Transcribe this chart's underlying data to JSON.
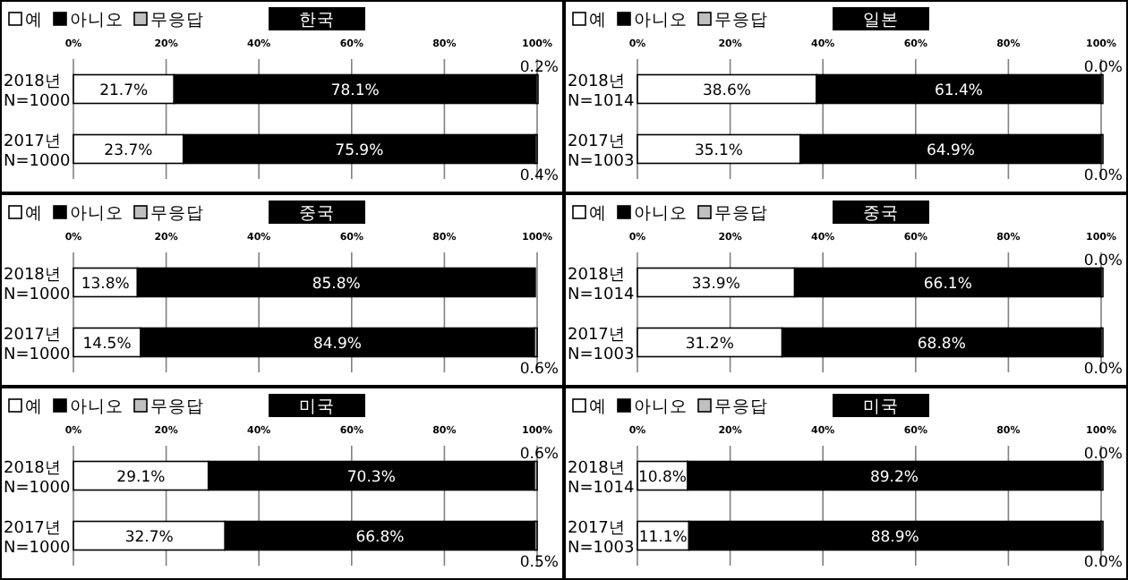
{
  "chart_data": [
    {
      "type": "bar",
      "orientation": "horizontal",
      "stacked": true,
      "title": "한국",
      "categories": [
        "2018년\nN=1000",
        "2017년\nN=1000"
      ],
      "xlim": [
        0,
        100
      ],
      "xticks": [
        {
          "value": 0,
          "label": "0%"
        },
        {
          "value": 20,
          "label": "20%"
        },
        {
          "value": 40,
          "label": "40%"
        },
        {
          "value": 60,
          "label": "60%"
        },
        {
          "value": 80,
          "label": "80%"
        },
        {
          "value": 100,
          "label": "100%"
        }
      ],
      "grid": "x",
      "legend": "top left",
      "series": [
        {
          "name": "예",
          "color": "#ffffff",
          "values": [
            21.7,
            23.7
          ],
          "value_labels": [
            "21.7%",
            "23.7%"
          ]
        },
        {
          "name": "아니오",
          "color": "#000000",
          "values": [
            78.1,
            75.9
          ],
          "value_labels": [
            "78.1%",
            "75.9%"
          ]
        },
        {
          "name": "무응답",
          "color": "#c0c0c0",
          "values": [
            0.2,
            0.4
          ],
          "value_labels": [
            "0.2%",
            "0.4%"
          ]
        }
      ]
    },
    {
      "type": "bar",
      "orientation": "horizontal",
      "stacked": true,
      "title": "일본",
      "categories": [
        "2018년\nN=1014",
        "2017년\nN=1003"
      ],
      "xlim": [
        0,
        100
      ],
      "xticks": [
        {
          "value": 0,
          "label": "0%"
        },
        {
          "value": 20,
          "label": "20%"
        },
        {
          "value": 40,
          "label": "40%"
        },
        {
          "value": 60,
          "label": "60%"
        },
        {
          "value": 80,
          "label": "80%"
        },
        {
          "value": 100,
          "label": "100%"
        }
      ],
      "grid": "x",
      "legend": "top left",
      "series": [
        {
          "name": "예",
          "color": "#ffffff",
          "values": [
            38.6,
            35.1
          ],
          "value_labels": [
            "38.6%",
            "35.1%"
          ]
        },
        {
          "name": "아니오",
          "color": "#000000",
          "values": [
            61.4,
            64.9
          ],
          "value_labels": [
            "61.4%",
            "64.9%"
          ]
        },
        {
          "name": "무응답",
          "color": "#c0c0c0",
          "values": [
            0.0,
            0.0
          ],
          "value_labels": [
            "0.0%",
            "0.0%"
          ]
        }
      ]
    },
    {
      "type": "bar",
      "orientation": "horizontal",
      "stacked": true,
      "title": "중국",
      "categories": [
        "2018년\nN=1000",
        "2017년\nN=1000"
      ],
      "xlim": [
        0,
        100
      ],
      "xticks": [
        {
          "value": 0,
          "label": "0%"
        },
        {
          "value": 20,
          "label": "20%"
        },
        {
          "value": 40,
          "label": "40%"
        },
        {
          "value": 60,
          "label": "60%"
        },
        {
          "value": 80,
          "label": "80%"
        },
        {
          "value": 100,
          "label": "100%"
        }
      ],
      "grid": "x",
      "legend": "top left",
      "series": [
        {
          "name": "예",
          "color": "#ffffff",
          "values": [
            13.8,
            14.5
          ],
          "value_labels": [
            "13.8%",
            "14.5%"
          ]
        },
        {
          "name": "아니오",
          "color": "#000000",
          "values": [
            85.8,
            84.9
          ],
          "value_labels": [
            "85.8%",
            "84.9%"
          ]
        },
        {
          "name": "무응답",
          "color": "#c0c0c0",
          "values": [
            null,
            0.6
          ],
          "value_labels": [
            null,
            "0.6%"
          ]
        }
      ]
    },
    {
      "type": "bar",
      "orientation": "horizontal",
      "stacked": true,
      "title": "중국",
      "categories": [
        "2018년\nN=1014",
        "2017년\nN=1003"
      ],
      "xlim": [
        0,
        100
      ],
      "xticks": [
        {
          "value": 0,
          "label": "0%"
        },
        {
          "value": 20,
          "label": "20%"
        },
        {
          "value": 40,
          "label": "40%"
        },
        {
          "value": 60,
          "label": "60%"
        },
        {
          "value": 80,
          "label": "80%"
        },
        {
          "value": 100,
          "label": "100%"
        }
      ],
      "grid": "x",
      "legend": "top left",
      "series": [
        {
          "name": "예",
          "color": "#ffffff",
          "values": [
            33.9,
            31.2
          ],
          "value_labels": [
            "33.9%",
            "31.2%"
          ]
        },
        {
          "name": "아니오",
          "color": "#000000",
          "values": [
            66.1,
            68.8
          ],
          "value_labels": [
            "66.1%",
            "68.8%"
          ]
        },
        {
          "name": "무응답",
          "color": "#c0c0c0",
          "values": [
            0.0,
            0.0
          ],
          "value_labels": [
            "0.0%",
            "0.0%"
          ]
        }
      ]
    },
    {
      "type": "bar",
      "orientation": "horizontal",
      "stacked": true,
      "title": "미국",
      "categories": [
        "2018년\nN=1000",
        "2017년\nN=1000"
      ],
      "xlim": [
        0,
        100
      ],
      "xticks": [
        {
          "value": 0,
          "label": "0%"
        },
        {
          "value": 20,
          "label": "20%"
        },
        {
          "value": 40,
          "label": "40%"
        },
        {
          "value": 60,
          "label": "60%"
        },
        {
          "value": 80,
          "label": "80%"
        },
        {
          "value": 100,
          "label": "100%"
        }
      ],
      "grid": "x",
      "legend": "top left",
      "series": [
        {
          "name": "예",
          "color": "#ffffff",
          "values": [
            29.1,
            32.7
          ],
          "value_labels": [
            "29.1%",
            "32.7%"
          ]
        },
        {
          "name": "아니오",
          "color": "#000000",
          "values": [
            70.3,
            66.8
          ],
          "value_labels": [
            "70.3%",
            "66.8%"
          ]
        },
        {
          "name": "무응답",
          "color": "#c0c0c0",
          "values": [
            0.6,
            0.5
          ],
          "value_labels": [
            "0.6%",
            "0.5%"
          ]
        }
      ]
    },
    {
      "type": "bar",
      "orientation": "horizontal",
      "stacked": true,
      "title": "미국",
      "categories": [
        "2018년\nN=1014",
        "2017년\nN=1003"
      ],
      "xlim": [
        0,
        100
      ],
      "xticks": [
        {
          "value": 0,
          "label": "0%"
        },
        {
          "value": 20,
          "label": "20%"
        },
        {
          "value": 40,
          "label": "40%"
        },
        {
          "value": 60,
          "label": "60%"
        },
        {
          "value": 80,
          "label": "80%"
        },
        {
          "value": 100,
          "label": "100%"
        }
      ],
      "grid": "x",
      "legend": "top left",
      "series": [
        {
          "name": "예",
          "color": "#ffffff",
          "values": [
            10.8,
            11.1
          ],
          "value_labels": [
            "10.8%",
            "11.1%"
          ]
        },
        {
          "name": "아니오",
          "color": "#000000",
          "values": [
            89.2,
            88.9
          ],
          "value_labels": [
            "89.2%",
            "88.9%"
          ]
        },
        {
          "name": "무응답",
          "color": "#c0c0c0",
          "values": [
            0.0,
            0.0
          ],
          "value_labels": [
            "0.0%",
            "0.0%"
          ]
        }
      ]
    }
  ]
}
